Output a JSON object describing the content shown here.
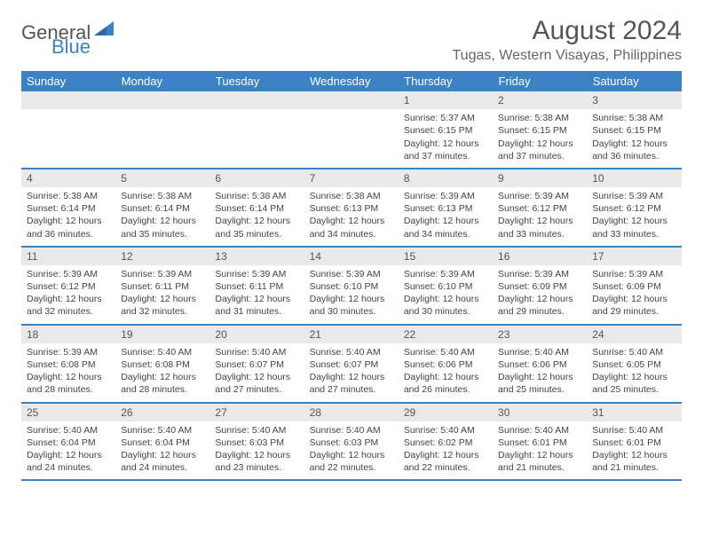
{
  "logo": {
    "text1": "General",
    "text2": "Blue"
  },
  "title": "August 2024",
  "location": "Tugas, Western Visayas, Philippines",
  "colors": {
    "header_bg": "#3b82c4",
    "header_text": "#ffffff",
    "daynum_bg": "#e9e9e9",
    "row_border": "#3b82c4",
    "body_text": "#444444",
    "title_text": "#555555"
  },
  "fonts": {
    "title_pt": 30,
    "location_pt": 16,
    "dayheader_pt": 13,
    "cell_pt": 10.5
  },
  "day_headers": [
    "Sunday",
    "Monday",
    "Tuesday",
    "Wednesday",
    "Thursday",
    "Friday",
    "Saturday"
  ],
  "lead_blanks": 4,
  "days": [
    {
      "n": "1",
      "sunrise": "5:37 AM",
      "sunset": "6:15 PM",
      "daylight": "12 hours and 37 minutes."
    },
    {
      "n": "2",
      "sunrise": "5:38 AM",
      "sunset": "6:15 PM",
      "daylight": "12 hours and 37 minutes."
    },
    {
      "n": "3",
      "sunrise": "5:38 AM",
      "sunset": "6:15 PM",
      "daylight": "12 hours and 36 minutes."
    },
    {
      "n": "4",
      "sunrise": "5:38 AM",
      "sunset": "6:14 PM",
      "daylight": "12 hours and 36 minutes."
    },
    {
      "n": "5",
      "sunrise": "5:38 AM",
      "sunset": "6:14 PM",
      "daylight": "12 hours and 35 minutes."
    },
    {
      "n": "6",
      "sunrise": "5:38 AM",
      "sunset": "6:14 PM",
      "daylight": "12 hours and 35 minutes."
    },
    {
      "n": "7",
      "sunrise": "5:38 AM",
      "sunset": "6:13 PM",
      "daylight": "12 hours and 34 minutes."
    },
    {
      "n": "8",
      "sunrise": "5:39 AM",
      "sunset": "6:13 PM",
      "daylight": "12 hours and 34 minutes."
    },
    {
      "n": "9",
      "sunrise": "5:39 AM",
      "sunset": "6:12 PM",
      "daylight": "12 hours and 33 minutes."
    },
    {
      "n": "10",
      "sunrise": "5:39 AM",
      "sunset": "6:12 PM",
      "daylight": "12 hours and 33 minutes."
    },
    {
      "n": "11",
      "sunrise": "5:39 AM",
      "sunset": "6:12 PM",
      "daylight": "12 hours and 32 minutes."
    },
    {
      "n": "12",
      "sunrise": "5:39 AM",
      "sunset": "6:11 PM",
      "daylight": "12 hours and 32 minutes."
    },
    {
      "n": "13",
      "sunrise": "5:39 AM",
      "sunset": "6:11 PM",
      "daylight": "12 hours and 31 minutes."
    },
    {
      "n": "14",
      "sunrise": "5:39 AM",
      "sunset": "6:10 PM",
      "daylight": "12 hours and 30 minutes."
    },
    {
      "n": "15",
      "sunrise": "5:39 AM",
      "sunset": "6:10 PM",
      "daylight": "12 hours and 30 minutes."
    },
    {
      "n": "16",
      "sunrise": "5:39 AM",
      "sunset": "6:09 PM",
      "daylight": "12 hours and 29 minutes."
    },
    {
      "n": "17",
      "sunrise": "5:39 AM",
      "sunset": "6:09 PM",
      "daylight": "12 hours and 29 minutes."
    },
    {
      "n": "18",
      "sunrise": "5:39 AM",
      "sunset": "6:08 PM",
      "daylight": "12 hours and 28 minutes."
    },
    {
      "n": "19",
      "sunrise": "5:40 AM",
      "sunset": "6:08 PM",
      "daylight": "12 hours and 28 minutes."
    },
    {
      "n": "20",
      "sunrise": "5:40 AM",
      "sunset": "6:07 PM",
      "daylight": "12 hours and 27 minutes."
    },
    {
      "n": "21",
      "sunrise": "5:40 AM",
      "sunset": "6:07 PM",
      "daylight": "12 hours and 27 minutes."
    },
    {
      "n": "22",
      "sunrise": "5:40 AM",
      "sunset": "6:06 PM",
      "daylight": "12 hours and 26 minutes."
    },
    {
      "n": "23",
      "sunrise": "5:40 AM",
      "sunset": "6:06 PM",
      "daylight": "12 hours and 25 minutes."
    },
    {
      "n": "24",
      "sunrise": "5:40 AM",
      "sunset": "6:05 PM",
      "daylight": "12 hours and 25 minutes."
    },
    {
      "n": "25",
      "sunrise": "5:40 AM",
      "sunset": "6:04 PM",
      "daylight": "12 hours and 24 minutes."
    },
    {
      "n": "26",
      "sunrise": "5:40 AM",
      "sunset": "6:04 PM",
      "daylight": "12 hours and 24 minutes."
    },
    {
      "n": "27",
      "sunrise": "5:40 AM",
      "sunset": "6:03 PM",
      "daylight": "12 hours and 23 minutes."
    },
    {
      "n": "28",
      "sunrise": "5:40 AM",
      "sunset": "6:03 PM",
      "daylight": "12 hours and 22 minutes."
    },
    {
      "n": "29",
      "sunrise": "5:40 AM",
      "sunset": "6:02 PM",
      "daylight": "12 hours and 22 minutes."
    },
    {
      "n": "30",
      "sunrise": "5:40 AM",
      "sunset": "6:01 PM",
      "daylight": "12 hours and 21 minutes."
    },
    {
      "n": "31",
      "sunrise": "5:40 AM",
      "sunset": "6:01 PM",
      "daylight": "12 hours and 21 minutes."
    }
  ],
  "labels": {
    "sunrise": "Sunrise:",
    "sunset": "Sunset:",
    "daylight": "Daylight:"
  }
}
